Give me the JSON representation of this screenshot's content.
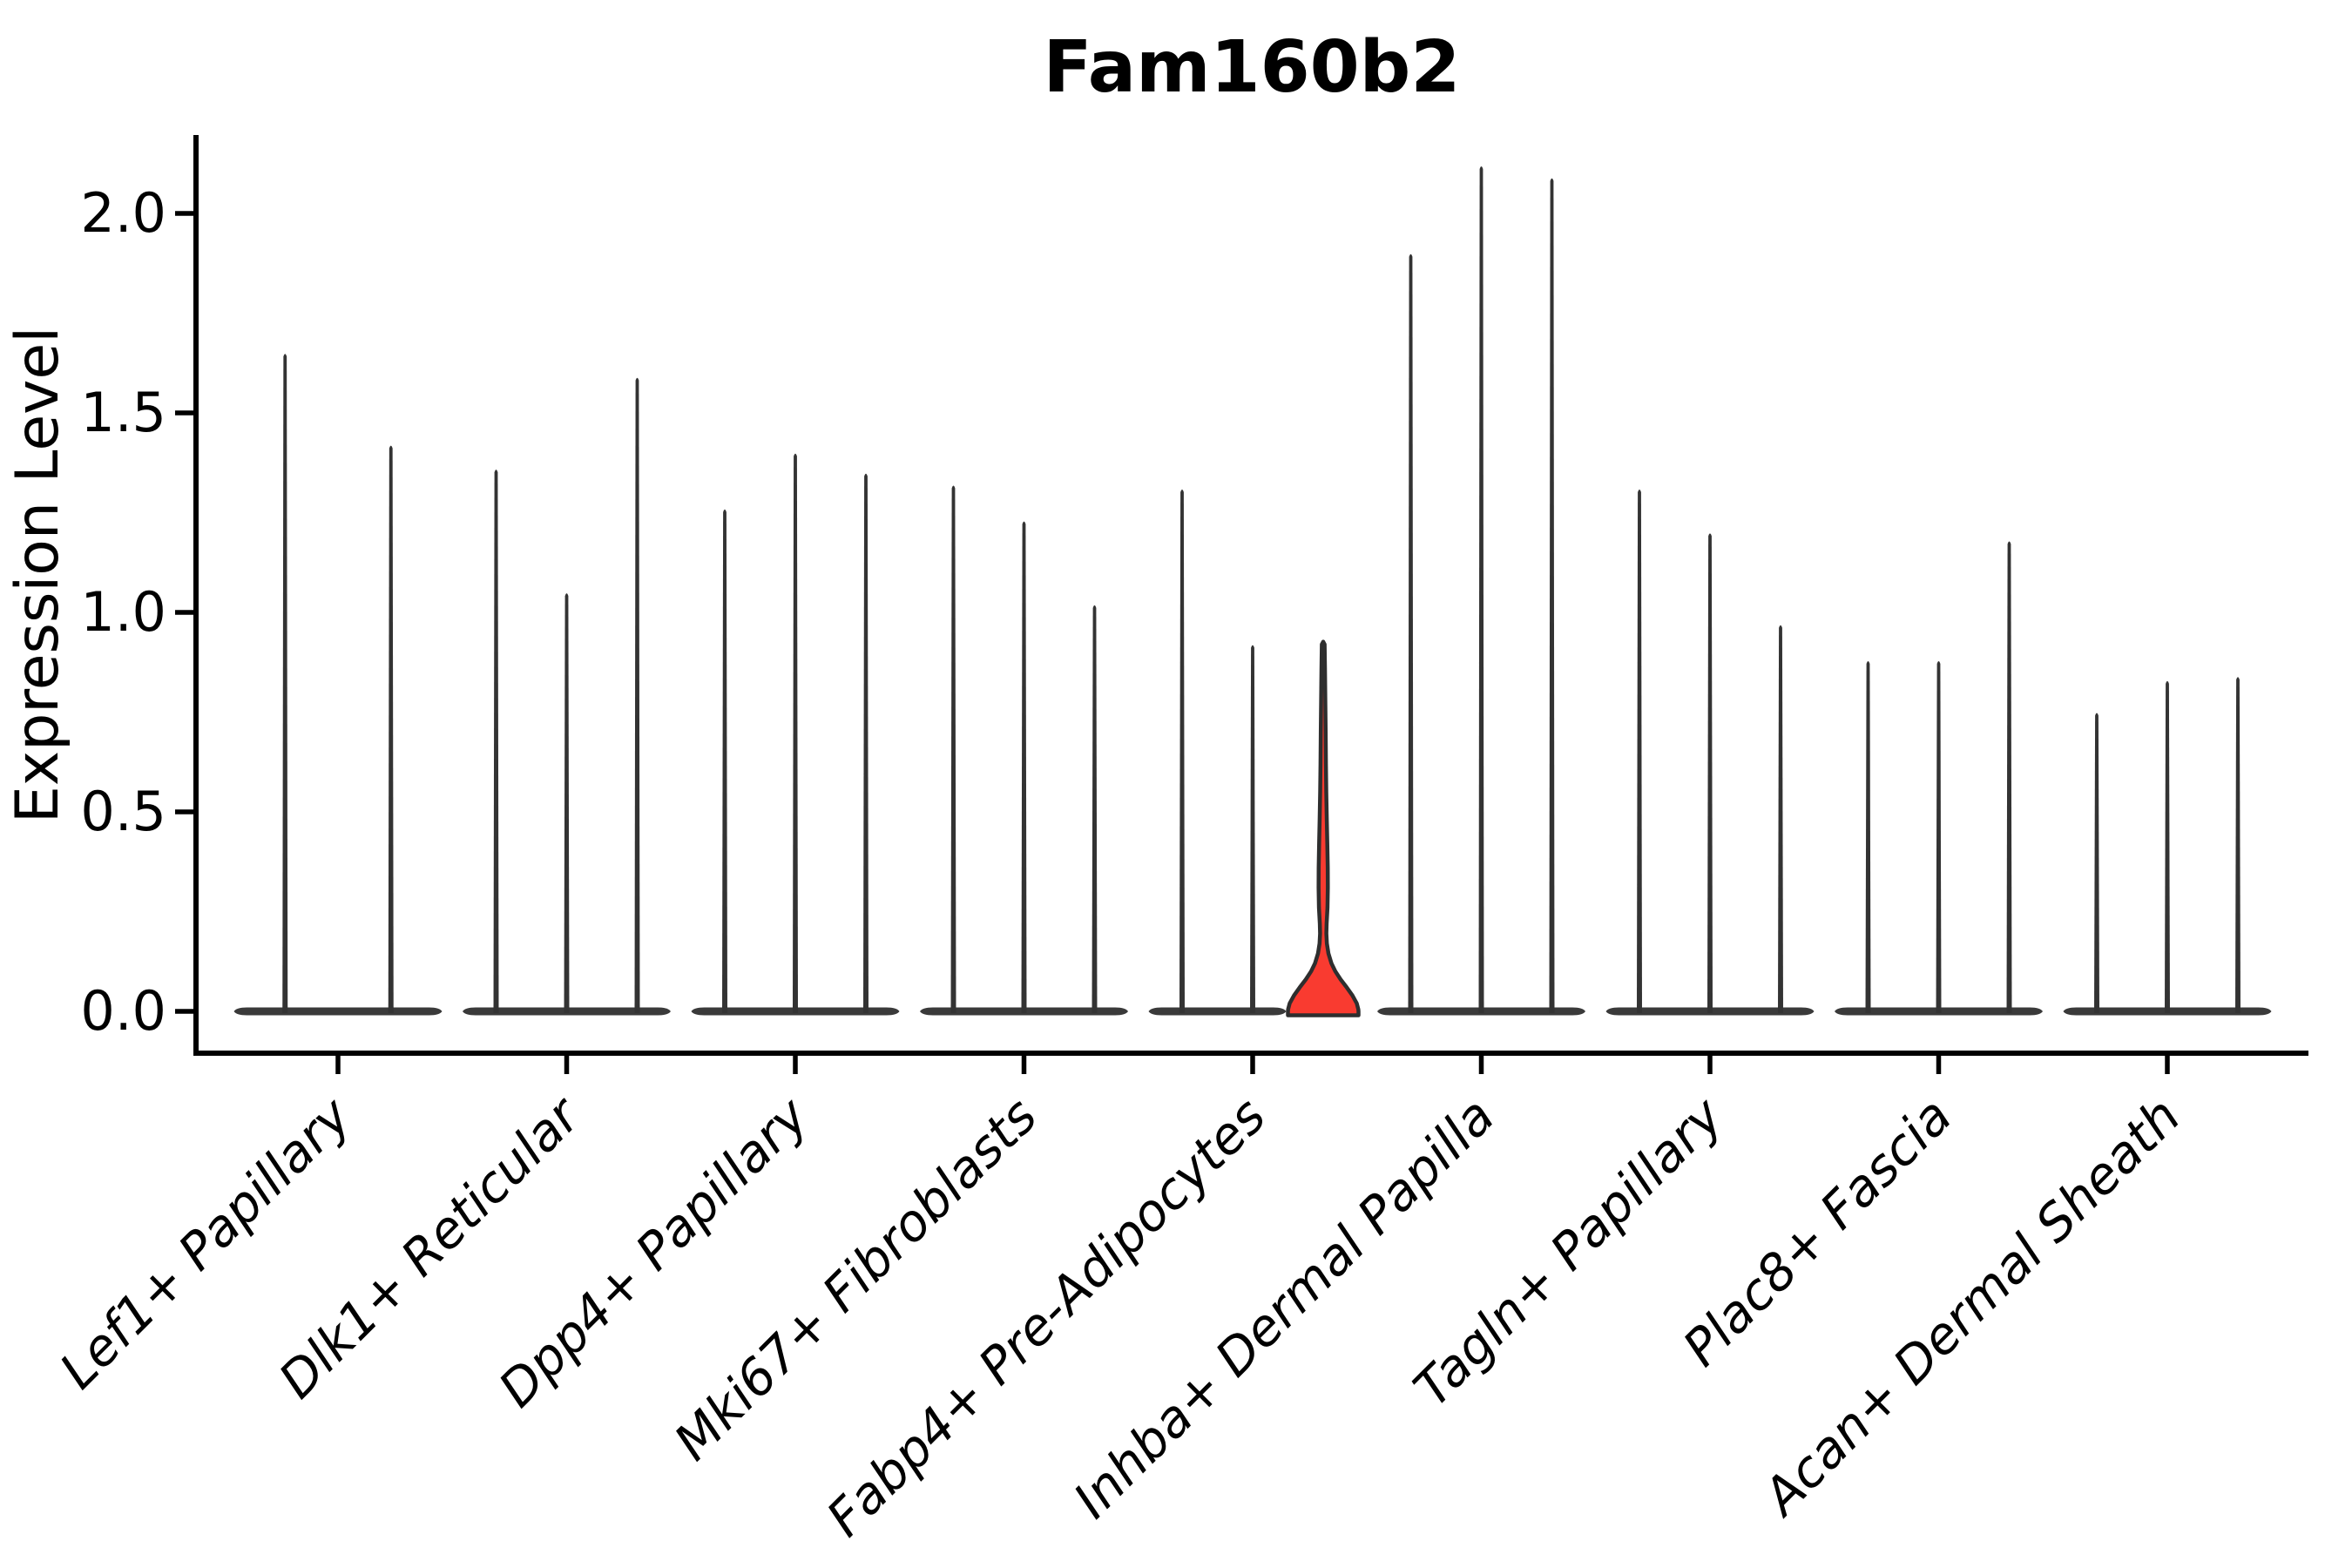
{
  "chart_data": {
    "type": "violin",
    "title": "Fam160b2",
    "ylabel": "Expression Level",
    "xlabel": "",
    "grid": false,
    "legend_position": "none",
    "ylim": [
      -0.1,
      2.2
    ],
    "yticks": [
      0.0,
      0.5,
      1.0,
      1.5,
      2.0
    ],
    "ytick_labels": [
      "0.0",
      "0.5",
      "1.0",
      "1.5",
      "2.0"
    ],
    "categories": [
      "Lef1+ Papillary",
      "Dlk1+ Reticular",
      "Dpp4+ Papillary",
      "Mki67+ Fibroblasts",
      "Fabp4+ Pre-Adipocytes",
      "Inhba+ Dermal Papilla",
      "Tagln+ Papillary",
      "Plac8+ Fascia",
      "Acan+ Dermal Sheath"
    ],
    "groups": [
      {
        "label": "Lef1+ Papillary",
        "violin_max_values": [
          1.65,
          1.42
        ],
        "highlight_index": -1
      },
      {
        "label": "Dlk1+ Reticular",
        "violin_max_values": [
          1.36,
          1.05,
          1.59
        ],
        "highlight_index": -1
      },
      {
        "label": "Dpp4+ Papillary",
        "violin_max_values": [
          1.26,
          1.4,
          1.35
        ],
        "highlight_index": -1
      },
      {
        "label": "Mki67+ Fibroblasts",
        "violin_max_values": [
          1.32,
          1.23,
          1.02
        ],
        "highlight_index": -1
      },
      {
        "label": "Fabp4+ Pre-Adipocytes",
        "violin_max_values": [
          1.31,
          0.92,
          0.92
        ],
        "highlight_index": 2
      },
      {
        "label": "Inhba+ Dermal Papilla",
        "violin_max_values": [
          1.9,
          2.12,
          2.09
        ],
        "highlight_index": -1
      },
      {
        "label": "Tagln+ Papillary",
        "violin_max_values": [
          1.31,
          1.2,
          0.97
        ],
        "highlight_index": -1
      },
      {
        "label": "Plac8+ Fascia",
        "violin_max_values": [
          0.88,
          0.88,
          1.18
        ],
        "highlight_index": -1
      },
      {
        "label": "Acan+ Dermal Sheath",
        "violin_max_values": [
          0.75,
          0.83,
          0.84
        ],
        "highlight_index": -1
      }
    ],
    "highlight_violin": {
      "group": "Fabp4+ Pre-Adipocytes",
      "max_value": 0.92,
      "density_profile_value_halfwidth": [
        [
          0.92,
          1.6
        ],
        [
          0.86,
          2.0
        ],
        [
          0.78,
          2.4
        ],
        [
          0.7,
          2.8
        ],
        [
          0.62,
          3.1
        ],
        [
          0.55,
          3.5
        ],
        [
          0.48,
          4.1
        ],
        [
          0.42,
          4.7
        ],
        [
          0.36,
          5.2
        ],
        [
          0.31,
          5.3
        ],
        [
          0.26,
          4.9
        ],
        [
          0.22,
          3.9
        ],
        [
          0.195,
          3.6
        ],
        [
          0.17,
          4.2
        ],
        [
          0.145,
          6.0
        ],
        [
          0.12,
          9.5
        ],
        [
          0.1,
          14
        ],
        [
          0.08,
          20
        ],
        [
          0.06,
          27
        ],
        [
          0.04,
          33.5
        ],
        [
          0.02,
          38.5
        ],
        [
          0.005,
          40.3
        ],
        [
          0.0,
          40.5
        ]
      ]
    },
    "colors": {
      "violin_color": "#333333",
      "violin_base_color": "#3a3a3a",
      "highlight_fill": "#f93b30",
      "highlight_stroke": "#2e2e2e",
      "axis_color": "#000000",
      "background": "#ffffff"
    }
  }
}
